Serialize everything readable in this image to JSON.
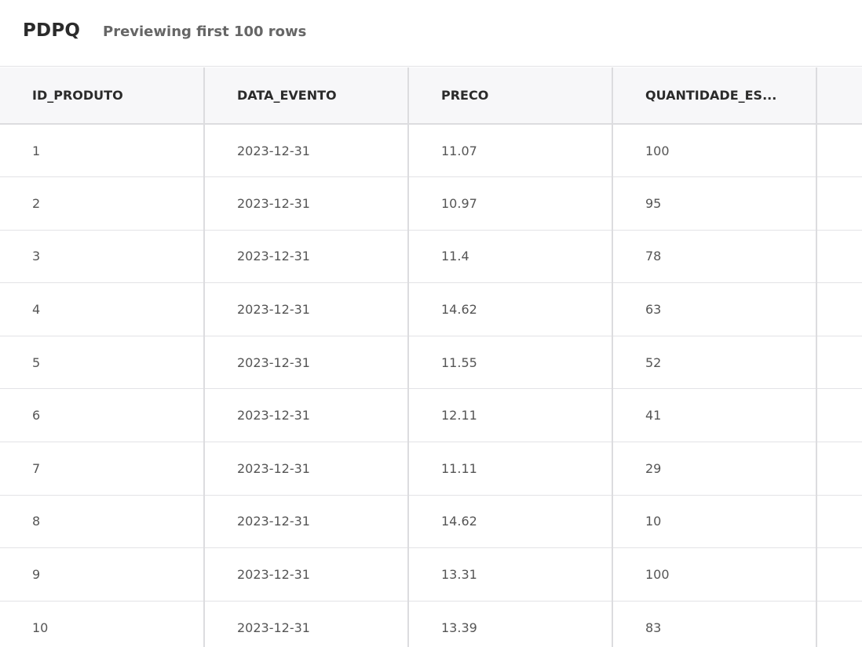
{
  "header": {
    "title": "PDPQ",
    "subtitle": "Previewing first 100 rows"
  },
  "table": {
    "columns": [
      "ID_PRODUTO",
      "DATA_EVENTO",
      "PRECO",
      "QUANTIDADE_ES...",
      ""
    ],
    "rows": [
      [
        "1",
        "2023-12-31",
        "11.07",
        "100",
        ""
      ],
      [
        "2",
        "2023-12-31",
        "10.97",
        "95",
        ""
      ],
      [
        "3",
        "2023-12-31",
        "11.4",
        "78",
        ""
      ],
      [
        "4",
        "2023-12-31",
        "14.62",
        "63",
        ""
      ],
      [
        "5",
        "2023-12-31",
        "11.55",
        "52",
        ""
      ],
      [
        "6",
        "2023-12-31",
        "12.11",
        "41",
        ""
      ],
      [
        "7",
        "2023-12-31",
        "11.11",
        "29",
        ""
      ],
      [
        "8",
        "2023-12-31",
        "14.62",
        "10",
        ""
      ],
      [
        "9",
        "2023-12-31",
        "13.31",
        "100",
        ""
      ],
      [
        "10",
        "2023-12-31",
        "13.39",
        "83",
        ""
      ]
    ]
  }
}
